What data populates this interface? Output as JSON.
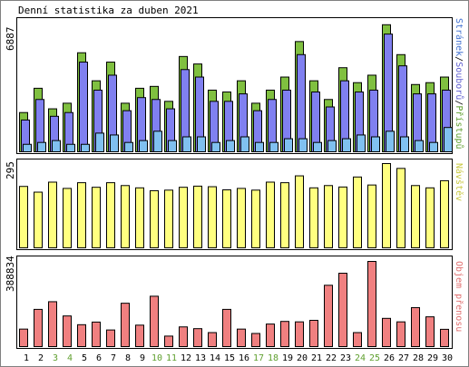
{
  "chart_data": [
    {
      "type": "bar",
      "title": "Denní statistika za duben 2021",
      "ylabel_right": "Stránek/Souborů/Přístupů",
      "ylabel_right_parts": [
        "Stránek",
        "/",
        "Souborů",
        "/",
        "Přístupů"
      ],
      "ymax_label": "6887",
      "categories": [
        "1",
        "2",
        "3",
        "4",
        "5",
        "6",
        "7",
        "8",
        "9",
        "10",
        "11",
        "12",
        "13",
        "14",
        "15",
        "16",
        "17",
        "18",
        "19",
        "20",
        "21",
        "22",
        "23",
        "24",
        "25",
        "26",
        "27",
        "28",
        "29",
        "30"
      ],
      "weekend_days": [
        "3",
        "4",
        "10",
        "11",
        "17",
        "18",
        "24",
        "25"
      ],
      "ylim": [
        0,
        6887
      ],
      "series": [
        {
          "name": "Přístupů",
          "color": "#80c040",
          "values": [
            2100,
            3400,
            2300,
            2600,
            5300,
            3800,
            4800,
            2600,
            3400,
            3500,
            2700,
            5100,
            4700,
            3300,
            3200,
            3800,
            2600,
            3300,
            4000,
            5900,
            3800,
            2800,
            4500,
            3700,
            4100,
            6800,
            5200,
            3600,
            3700,
            4000
          ]
        },
        {
          "name": "Souborů",
          "color": "#8080f0",
          "values": [
            1700,
            2800,
            1900,
            2100,
            4800,
            3300,
            4100,
            2200,
            2900,
            2800,
            2300,
            4400,
            4000,
            2700,
            2700,
            3100,
            2200,
            2800,
            3300,
            5200,
            3200,
            2400,
            3800,
            3200,
            3300,
            6300,
            4600,
            3100,
            3100,
            3300
          ]
        },
        {
          "name": "Stránek",
          "color": "#80c0f0",
          "values": [
            400,
            500,
            600,
            400,
            400,
            1000,
            900,
            500,
            600,
            1100,
            600,
            800,
            800,
            500,
            600,
            800,
            500,
            500,
            700,
            700,
            500,
            600,
            700,
            900,
            800,
            1100,
            800,
            600,
            500,
            1300
          ]
        }
      ]
    },
    {
      "type": "bar",
      "ylabel_right": "Návštěv",
      "ymax_label": "295",
      "ylim": [
        0,
        295
      ],
      "series": [
        {
          "name": "Návštěv",
          "color": "#ffff80",
          "values": [
            215,
            195,
            230,
            208,
            228,
            212,
            228,
            218,
            210,
            200,
            202,
            212,
            216,
            214,
            203,
            208,
            202,
            230,
            228,
            252,
            210,
            218,
            213,
            248,
            220,
            295,
            278,
            218,
            210,
            235
          ]
        }
      ]
    },
    {
      "type": "bar",
      "ylabel_right": "Objem přenosu",
      "ymax_label": "388834",
      "ylim": [
        0,
        388834
      ],
      "series": [
        {
          "name": "Objem přenosu",
          "color": "#f08080",
          "values": [
            80000,
            170000,
            205000,
            140000,
            100000,
            112000,
            76000,
            198000,
            98000,
            230000,
            48000,
            90000,
            82000,
            64000,
            170000,
            80000,
            60000,
            103000,
            115000,
            113000,
            120000,
            280000,
            335000,
            64000,
            388834,
            129000,
            113000,
            178000,
            136000,
            79000
          ]
        }
      ]
    }
  ]
}
